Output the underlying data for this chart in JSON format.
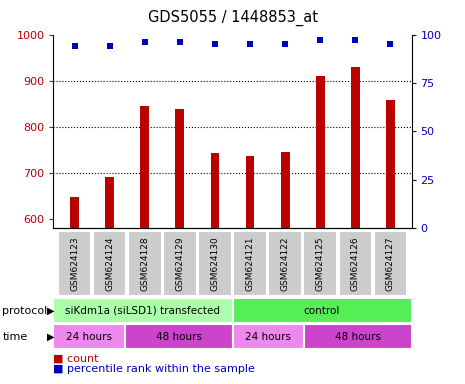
{
  "title": "GDS5055 / 1448853_at",
  "samples": [
    "GSM624123",
    "GSM624124",
    "GSM624128",
    "GSM624129",
    "GSM624130",
    "GSM624121",
    "GSM624122",
    "GSM624125",
    "GSM624126",
    "GSM624127"
  ],
  "counts": [
    648,
    690,
    845,
    838,
    742,
    737,
    745,
    910,
    930,
    858
  ],
  "percentile_ranks": [
    94,
    94,
    96,
    96,
    95,
    95,
    95,
    97,
    97,
    95
  ],
  "ylim_left": [
    580,
    1000
  ],
  "ylim_right": [
    0,
    100
  ],
  "bar_color": "#bb0000",
  "dot_color": "#0000bb",
  "protocol_groups": [
    {
      "label": "siKdm1a (siLSD1) transfected",
      "start": 0,
      "end": 5,
      "color": "#aaffaa"
    },
    {
      "label": "control",
      "start": 5,
      "end": 10,
      "color": "#55ee55"
    }
  ],
  "time_groups": [
    {
      "label": "24 hours",
      "start": 0,
      "end": 2,
      "color": "#ee88ee"
    },
    {
      "label": "48 hours",
      "start": 2,
      "end": 5,
      "color": "#cc44cc"
    },
    {
      "label": "24 hours",
      "start": 5,
      "end": 7,
      "color": "#ee88ee"
    },
    {
      "label": "48 hours",
      "start": 7,
      "end": 10,
      "color": "#cc44cc"
    }
  ],
  "ytick_left": [
    600,
    700,
    800,
    900,
    1000
  ],
  "ytick_right": [
    0,
    25,
    50,
    75,
    100
  ],
  "sample_bg_color": "#cccccc"
}
